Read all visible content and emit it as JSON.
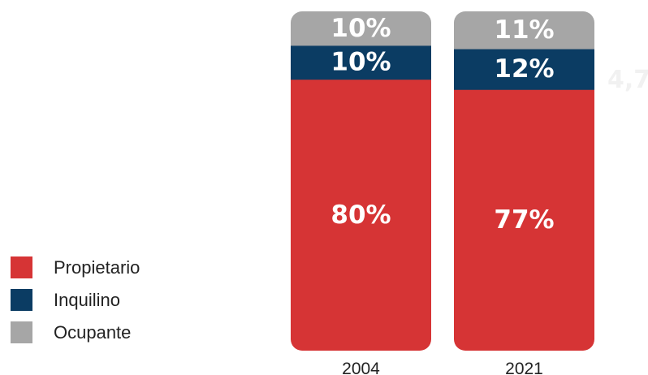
{
  "chart_data": {
    "type": "bar",
    "stacked": true,
    "normalized": true,
    "categories": [
      "2004",
      "2021"
    ],
    "series": [
      {
        "name": "Propietario",
        "color": "#d63435",
        "values": [
          80,
          77
        ],
        "labels": [
          "80%",
          "77%"
        ]
      },
      {
        "name": "Inquilino",
        "color": "#0b3c63",
        "values": [
          10,
          12
        ],
        "labels": [
          "10%",
          "12%"
        ]
      },
      {
        "name": "Ocupante",
        "color": "#a6a6a6",
        "values": [
          10,
          11
        ],
        "labels": [
          "10%",
          "11%"
        ]
      }
    ],
    "ylim": [
      0,
      100
    ],
    "grid": false,
    "legend": "bottom-left",
    "annotations": [
      "4,7"
    ]
  }
}
